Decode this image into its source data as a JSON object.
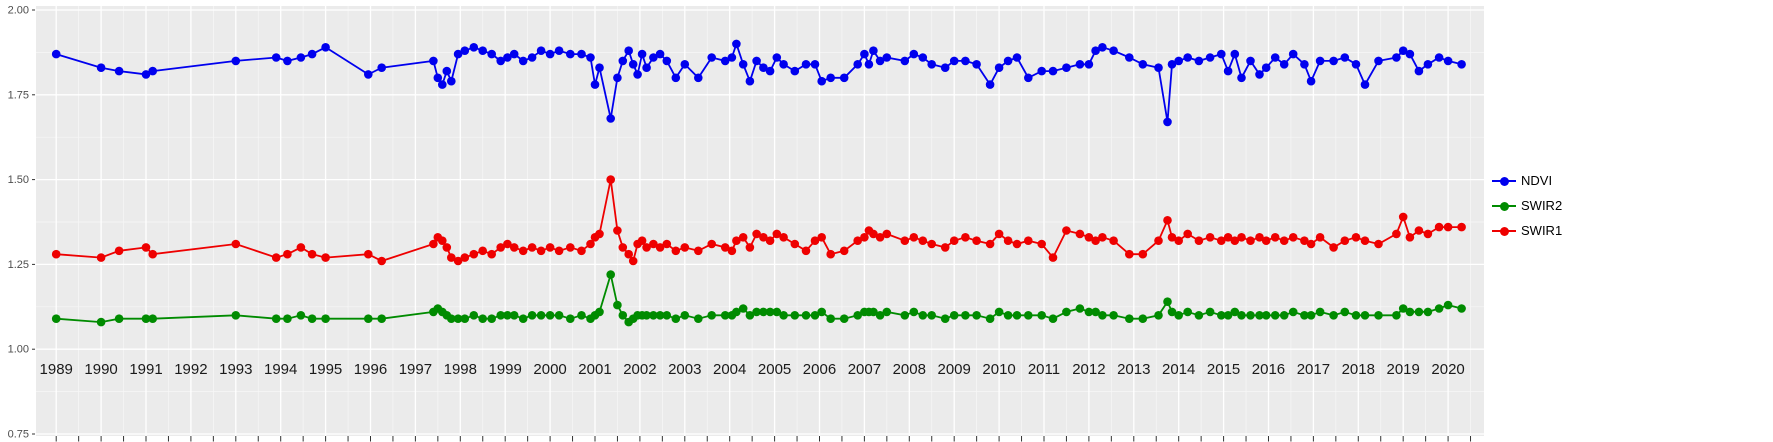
{
  "figure": {
    "background": "#FFFFFF",
    "panel_background": "#EBEBEB",
    "grid_major_color": "#FFFFFF",
    "grid_minor_color": "#F7F7F7",
    "axis_text_color": "#4D4D4D",
    "x_label_color": "#1A1A1A",
    "tick_color": "#333333"
  },
  "legend": {
    "position": "right",
    "items": [
      {
        "label": "NDVI",
        "color": "#0000EE"
      },
      {
        "label": "SWIR2",
        "color": "#008B00"
      },
      {
        "label": "SWIR1",
        "color": "#EE0000"
      }
    ]
  },
  "chart_data": {
    "type": "line",
    "title": "",
    "xlabel": "",
    "ylabel": "",
    "grid": true,
    "legend_position": "right",
    "marker": "circle",
    "xlim": [
      1988.55,
      2020.8
    ],
    "ylim": [
      0.75,
      2.0
    ],
    "yticks": [
      {
        "label": "2.00",
        "value": 2.0
      },
      {
        "label": "1.75",
        "value": 1.75
      },
      {
        "label": "1.50",
        "value": 1.5
      },
      {
        "label": "1.25",
        "value": 1.25
      },
      {
        "label": "1.00",
        "value": 1.0
      },
      {
        "label": "0.75",
        "value": 0.75
      }
    ],
    "xticks": [
      1989,
      1990,
      1991,
      1992,
      1993,
      1994,
      1995,
      1996,
      1997,
      1998,
      1999,
      2000,
      2001,
      2002,
      2003,
      2004,
      2005,
      2006,
      2007,
      2008,
      2009,
      2010,
      2011,
      2012,
      2013,
      2014,
      2015,
      2016,
      2017,
      2018,
      2019,
      2020
    ],
    "x": [
      1989.0,
      1990.0,
      1990.4,
      1991.0,
      1991.15,
      1993.0,
      1993.9,
      1994.15,
      1994.45,
      1994.7,
      1995.0,
      1995.95,
      1996.25,
      1997.4,
      1997.5,
      1997.6,
      1997.7,
      1997.8,
      1997.95,
      1998.1,
      1998.3,
      1998.5,
      1998.7,
      1998.9,
      1999.05,
      1999.2,
      1999.4,
      1999.6,
      1999.8,
      2000.0,
      2000.2,
      2000.45,
      2000.7,
      2000.9,
      2001.0,
      2001.1,
      2001.35,
      2001.5,
      2001.62,
      2001.75,
      2001.85,
      2001.95,
      2002.05,
      2002.15,
      2002.3,
      2002.45,
      2002.6,
      2002.8,
      2003.0,
      2003.3,
      2003.6,
      2003.9,
      2004.05,
      2004.15,
      2004.3,
      2004.45,
      2004.6,
      2004.75,
      2004.9,
      2005.05,
      2005.2,
      2005.45,
      2005.7,
      2005.9,
      2006.05,
      2006.25,
      2006.55,
      2006.85,
      2007.0,
      2007.1,
      2007.2,
      2007.35,
      2007.5,
      2007.9,
      2008.1,
      2008.3,
      2008.5,
      2008.8,
      2009.0,
      2009.25,
      2009.5,
      2009.8,
      2010.0,
      2010.2,
      2010.4,
      2010.65,
      2010.95,
      2011.2,
      2011.5,
      2011.8,
      2012.0,
      2012.15,
      2012.3,
      2012.55,
      2012.9,
      2013.2,
      2013.55,
      2013.75,
      2013.85,
      2014.0,
      2014.2,
      2014.45,
      2014.7,
      2014.95,
      2015.1,
      2015.25,
      2015.4,
      2015.6,
      2015.8,
      2015.95,
      2016.15,
      2016.35,
      2016.55,
      2016.8,
      2016.95,
      2017.15,
      2017.45,
      2017.7,
      2017.95,
      2018.15,
      2018.45,
      2018.85,
      2019.0,
      2019.15,
      2019.35,
      2019.55,
      2019.8,
      2020.0,
      2020.3
    ],
    "series": [
      {
        "name": "NDVI",
        "color": "#0000EE",
        "values": [
          1.87,
          1.83,
          1.82,
          1.81,
          1.82,
          1.85,
          1.86,
          1.85,
          1.86,
          1.87,
          1.89,
          1.81,
          1.83,
          1.85,
          1.8,
          1.78,
          1.82,
          1.79,
          1.87,
          1.88,
          1.89,
          1.88,
          1.87,
          1.85,
          1.86,
          1.87,
          1.85,
          1.86,
          1.88,
          1.87,
          1.88,
          1.87,
          1.87,
          1.86,
          1.78,
          1.83,
          1.68,
          1.8,
          1.85,
          1.88,
          1.84,
          1.81,
          1.87,
          1.83,
          1.86,
          1.87,
          1.85,
          1.8,
          1.84,
          1.8,
          1.86,
          1.85,
          1.86,
          1.9,
          1.84,
          1.79,
          1.85,
          1.83,
          1.82,
          1.86,
          1.84,
          1.82,
          1.84,
          1.84,
          1.79,
          1.8,
          1.8,
          1.84,
          1.87,
          1.84,
          1.88,
          1.85,
          1.86,
          1.85,
          1.87,
          1.86,
          1.84,
          1.83,
          1.85,
          1.85,
          1.84,
          1.78,
          1.83,
          1.85,
          1.86,
          1.8,
          1.82,
          1.82,
          1.83,
          1.84,
          1.84,
          1.88,
          1.89,
          1.88,
          1.86,
          1.84,
          1.83,
          1.67,
          1.84,
          1.85,
          1.86,
          1.85,
          1.86,
          1.87,
          1.82,
          1.87,
          1.8,
          1.85,
          1.81,
          1.83,
          1.86,
          1.84,
          1.87,
          1.84,
          1.79,
          1.85,
          1.85,
          1.86,
          1.84,
          1.78,
          1.85,
          1.86,
          1.88,
          1.87,
          1.82,
          1.84,
          1.86,
          1.85,
          1.84
        ]
      },
      {
        "name": "SWIR2",
        "color": "#008B00",
        "values": [
          1.09,
          1.08,
          1.09,
          1.09,
          1.09,
          1.1,
          1.09,
          1.09,
          1.1,
          1.09,
          1.09,
          1.09,
          1.09,
          1.11,
          1.12,
          1.11,
          1.1,
          1.09,
          1.09,
          1.09,
          1.1,
          1.09,
          1.09,
          1.1,
          1.1,
          1.1,
          1.09,
          1.1,
          1.1,
          1.1,
          1.1,
          1.09,
          1.1,
          1.09,
          1.1,
          1.11,
          1.22,
          1.13,
          1.1,
          1.08,
          1.09,
          1.1,
          1.1,
          1.1,
          1.1,
          1.1,
          1.1,
          1.09,
          1.1,
          1.09,
          1.1,
          1.1,
          1.1,
          1.11,
          1.12,
          1.1,
          1.11,
          1.11,
          1.11,
          1.11,
          1.1,
          1.1,
          1.1,
          1.1,
          1.11,
          1.09,
          1.09,
          1.1,
          1.11,
          1.11,
          1.11,
          1.1,
          1.11,
          1.1,
          1.11,
          1.1,
          1.1,
          1.09,
          1.1,
          1.1,
          1.1,
          1.09,
          1.11,
          1.1,
          1.1,
          1.1,
          1.1,
          1.09,
          1.11,
          1.12,
          1.11,
          1.11,
          1.1,
          1.1,
          1.09,
          1.09,
          1.1,
          1.14,
          1.11,
          1.1,
          1.11,
          1.1,
          1.11,
          1.1,
          1.1,
          1.11,
          1.1,
          1.1,
          1.1,
          1.1,
          1.1,
          1.1,
          1.11,
          1.1,
          1.1,
          1.11,
          1.1,
          1.11,
          1.1,
          1.1,
          1.1,
          1.1,
          1.12,
          1.11,
          1.11,
          1.11,
          1.12,
          1.13,
          1.12
        ]
      },
      {
        "name": "SWIR1",
        "color": "#EE0000",
        "values": [
          1.28,
          1.27,
          1.29,
          1.3,
          1.28,
          1.31,
          1.27,
          1.28,
          1.3,
          1.28,
          1.27,
          1.28,
          1.26,
          1.31,
          1.33,
          1.32,
          1.3,
          1.27,
          1.26,
          1.27,
          1.28,
          1.29,
          1.28,
          1.3,
          1.31,
          1.3,
          1.29,
          1.3,
          1.29,
          1.3,
          1.29,
          1.3,
          1.29,
          1.31,
          1.33,
          1.34,
          1.5,
          1.35,
          1.3,
          1.28,
          1.26,
          1.31,
          1.32,
          1.3,
          1.31,
          1.3,
          1.31,
          1.29,
          1.3,
          1.29,
          1.31,
          1.3,
          1.29,
          1.32,
          1.33,
          1.3,
          1.34,
          1.33,
          1.32,
          1.34,
          1.33,
          1.31,
          1.29,
          1.32,
          1.33,
          1.28,
          1.29,
          1.32,
          1.33,
          1.35,
          1.34,
          1.33,
          1.34,
          1.32,
          1.33,
          1.32,
          1.31,
          1.3,
          1.32,
          1.33,
          1.32,
          1.31,
          1.34,
          1.32,
          1.31,
          1.32,
          1.31,
          1.27,
          1.35,
          1.34,
          1.33,
          1.32,
          1.33,
          1.32,
          1.28,
          1.28,
          1.32,
          1.38,
          1.33,
          1.32,
          1.34,
          1.32,
          1.33,
          1.32,
          1.33,
          1.32,
          1.33,
          1.32,
          1.33,
          1.32,
          1.33,
          1.32,
          1.33,
          1.32,
          1.31,
          1.33,
          1.3,
          1.32,
          1.33,
          1.32,
          1.31,
          1.34,
          1.39,
          1.33,
          1.35,
          1.34,
          1.36,
          1.36,
          1.36
        ]
      }
    ]
  }
}
